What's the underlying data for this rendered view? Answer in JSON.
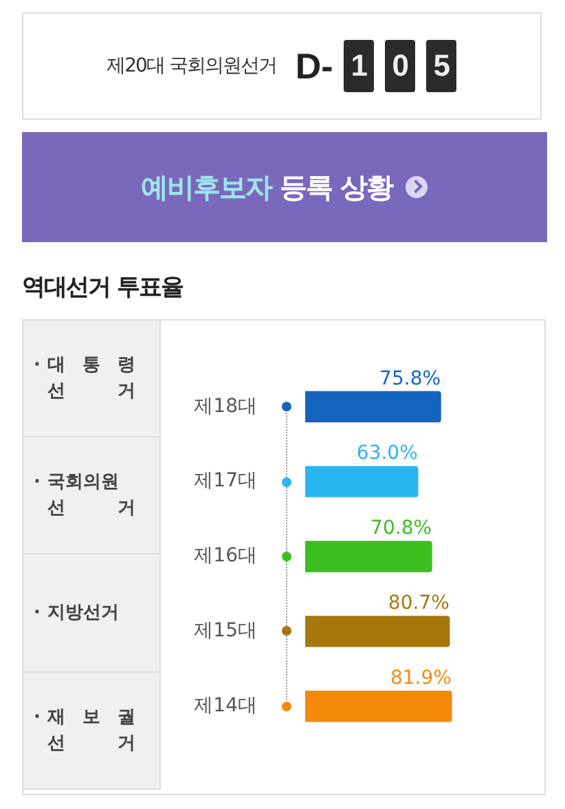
{
  "chart_data": {
    "type": "bar",
    "orientation": "horizontal",
    "title": "역대선거 투표율",
    "categories": [
      "제18대",
      "제17대",
      "제16대",
      "제15대",
      "제14대"
    ],
    "values": [
      75.8,
      63.0,
      70.8,
      80.7,
      81.9
    ],
    "value_labels": [
      "75.8%",
      "63.0%",
      "70.8%",
      "80.7%",
      "81.9%"
    ],
    "colors": [
      "#1565c0",
      "#29b6f0",
      "#3cbf1e",
      "#a8780e",
      "#f58a0a"
    ],
    "tick_labels": "y",
    "grid": false,
    "legend": false,
    "annotations": [
      "제20대 국회의원선거",
      "D- 1 0 5",
      "예비후보자 등록 상황",
      "· 대 통 령\n선 거",
      "· 국회의원\n선 거",
      "· 지방선거",
      "· 재 보 궐\n선 거"
    ]
  }
}
